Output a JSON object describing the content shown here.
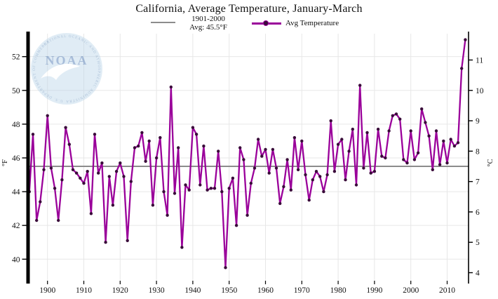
{
  "title": "California, Average Temperature, January-March",
  "legend": {
    "baseline_line1": "1901-2000",
    "baseline_line2": "Avg: 45.5°F",
    "series_label": "Avg Temperature"
  },
  "watermark": {
    "name": "NOAA",
    "ring_top": "NATIONAL OCEANIC AND ATMOSPHERIC ADMINISTRATION",
    "ring_bottom": "U.S. DEPARTMENT OF COMMERCE"
  },
  "chart_data": {
    "type": "line",
    "title": "California, Average Temperature, January-March",
    "xlabel": "",
    "ylabel_left": "°F",
    "ylabel_right": "°C",
    "x_ticks": [
      1900,
      1910,
      1920,
      1930,
      1940,
      1950,
      1960,
      1970,
      1980,
      1990,
      2000,
      2010
    ],
    "y_ticks_f": [
      40,
      42,
      44,
      46,
      48,
      50,
      52
    ],
    "y_ticks_c": [
      4,
      5,
      6,
      7,
      8,
      9,
      10,
      11
    ],
    "xlim": [
      1895,
      2016
    ],
    "ylim_f": [
      38.9,
      53.4
    ],
    "grid": true,
    "legend_position": "top",
    "line_color": "#9a009a",
    "marker_color": "#3a0b3a",
    "baseline_color": "#8c8c8c",
    "baseline": {
      "label": "1901-2000 Avg",
      "value": 45.5
    },
    "series": [
      {
        "name": "Avg Temperature",
        "x_start": 1895,
        "x_step": 1,
        "values": [
          44.0,
          47.4,
          42.3,
          43.4,
          45.3,
          48.5,
          45.4,
          44.2,
          42.3,
          44.7,
          47.8,
          46.8,
          45.3,
          45.1,
          44.8,
          44.5,
          45.2,
          42.7,
          47.4,
          45.1,
          45.7,
          41.0,
          44.9,
          43.2,
          45.2,
          45.7,
          44.9,
          41.1,
          44.6,
          46.6,
          46.7,
          47.5,
          45.8,
          47.0,
          43.2,
          46.0,
          47.2,
          44.0,
          42.6,
          50.2,
          43.9,
          46.6,
          40.7,
          44.4,
          44.1,
          47.8,
          47.4,
          44.4,
          46.7,
          44.1,
          44.2,
          44.2,
          46.4,
          44.0,
          39.5,
          44.2,
          44.8,
          42.0,
          46.6,
          45.9,
          42.6,
          44.5,
          45.4,
          47.1,
          46.1,
          46.5,
          45.1,
          46.5,
          45.4,
          43.3,
          44.3,
          45.9,
          44.1,
          47.2,
          45.3,
          47.0,
          45.0,
          43.5,
          44.7,
          45.2,
          44.9,
          44.0,
          45.0,
          48.2,
          45.2,
          46.8,
          47.1,
          44.7,
          46.4,
          47.7,
          44.4,
          50.3,
          45.4,
          47.5,
          45.1,
          45.2,
          47.7,
          46.1,
          46.0,
          47.6,
          48.5,
          48.6,
          48.3,
          45.9,
          45.7,
          47.6,
          45.9,
          46.3,
          48.9,
          48.1,
          47.3,
          45.3,
          47.6,
          45.6,
          47.0,
          45.7,
          47.1,
          46.7,
          46.9,
          51.3,
          53.0
        ]
      }
    ]
  }
}
